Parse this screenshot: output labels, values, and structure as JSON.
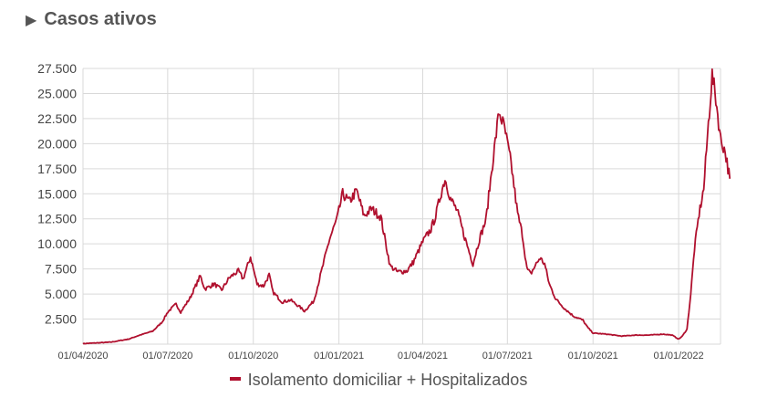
{
  "header": {
    "title": "Casos ativos",
    "expand_icon": "triangle-right-icon"
  },
  "chart_data": {
    "type": "line",
    "title": "Casos ativos",
    "xlabel": "",
    "ylabel": "",
    "ylim": [
      0,
      27500
    ],
    "xlim": [
      "2020-04-01",
      "2022-02-15"
    ],
    "yticks": [
      2500,
      5000,
      7500,
      10000,
      12500,
      15000,
      17500,
      20000,
      22500,
      25000,
      27500
    ],
    "ytick_labels": [
      "2.500",
      "5.000",
      "7.500",
      "10.000",
      "12.500",
      "15.000",
      "17.500",
      "20.000",
      "22.500",
      "25.000",
      "27.500"
    ],
    "xticks": [
      "2020-04-01",
      "2020-07-01",
      "2020-10-01",
      "2021-01-01",
      "2021-04-01",
      "2021-07-01",
      "2021-10-01",
      "2022-01-01"
    ],
    "xtick_labels": [
      "01/04/2020",
      "01/07/2020",
      "01/10/2020",
      "01/01/2021",
      "01/04/2021",
      "01/07/2021",
      "01/10/2021",
      "01/01/2022"
    ],
    "grid": true,
    "legend_position": "bottom",
    "series": [
      {
        "name": "Isolamento domiciliar + Hospitalizados",
        "color": "#b0102e",
        "points": [
          [
            "2020-04-01",
            50
          ],
          [
            "2020-05-01",
            200
          ],
          [
            "2020-05-20",
            500
          ],
          [
            "2020-06-01",
            900
          ],
          [
            "2020-06-15",
            1300
          ],
          [
            "2020-06-25",
            2200
          ],
          [
            "2020-07-01",
            3200
          ],
          [
            "2020-07-10",
            4000
          ],
          [
            "2020-07-15",
            3200
          ],
          [
            "2020-07-25",
            4600
          ],
          [
            "2020-08-05",
            6800
          ],
          [
            "2020-08-10",
            5500
          ],
          [
            "2020-08-20",
            6000
          ],
          [
            "2020-08-28",
            5400
          ],
          [
            "2020-09-05",
            6600
          ],
          [
            "2020-09-15",
            7300
          ],
          [
            "2020-09-20",
            6500
          ],
          [
            "2020-09-28",
            8700
          ],
          [
            "2020-10-05",
            6000
          ],
          [
            "2020-10-12",
            5800
          ],
          [
            "2020-10-18",
            6900
          ],
          [
            "2020-10-22",
            5200
          ],
          [
            "2020-11-01",
            4200
          ],
          [
            "2020-11-10",
            4400
          ],
          [
            "2020-11-20",
            3700
          ],
          [
            "2020-11-25",
            3300
          ],
          [
            "2020-12-05",
            4300
          ],
          [
            "2020-12-15",
            7900
          ],
          [
            "2020-12-22",
            10500
          ],
          [
            "2020-12-30",
            12500
          ],
          [
            "2021-01-05",
            15000
          ],
          [
            "2021-01-12",
            14200
          ],
          [
            "2021-01-20",
            15300
          ],
          [
            "2021-01-28",
            12800
          ],
          [
            "2021-02-05",
            13500
          ],
          [
            "2021-02-15",
            12700
          ],
          [
            "2021-02-20",
            10200
          ],
          [
            "2021-02-25",
            7800
          ],
          [
            "2021-03-05",
            7200
          ],
          [
            "2021-03-15",
            7300
          ],
          [
            "2021-03-22",
            8200
          ],
          [
            "2021-04-01",
            10200
          ],
          [
            "2021-04-10",
            11500
          ],
          [
            "2021-04-15",
            12800
          ],
          [
            "2021-04-20",
            14800
          ],
          [
            "2021-04-25",
            16500
          ],
          [
            "2021-05-01",
            14500
          ],
          [
            "2021-05-08",
            13300
          ],
          [
            "2021-05-15",
            11000
          ],
          [
            "2021-05-20",
            9500
          ],
          [
            "2021-05-25",
            8000
          ],
          [
            "2021-06-01",
            10500
          ],
          [
            "2021-06-08",
            12400
          ],
          [
            "2021-06-15",
            18000
          ],
          [
            "2021-06-22",
            23200
          ],
          [
            "2021-06-28",
            21500
          ],
          [
            "2021-07-05",
            18000
          ],
          [
            "2021-07-12",
            13000
          ],
          [
            "2021-07-17",
            11000
          ],
          [
            "2021-07-22",
            7500
          ],
          [
            "2021-07-26",
            7000
          ],
          [
            "2021-08-01",
            8000
          ],
          [
            "2021-08-05",
            8600
          ],
          [
            "2021-08-10",
            8000
          ],
          [
            "2021-08-15",
            6000
          ],
          [
            "2021-08-22",
            4500
          ],
          [
            "2021-09-01",
            3500
          ],
          [
            "2021-09-10",
            2800
          ],
          [
            "2021-09-20",
            2400
          ],
          [
            "2021-09-25",
            1700
          ],
          [
            "2021-10-01",
            1100
          ],
          [
            "2021-10-15",
            1000
          ],
          [
            "2021-11-01",
            800
          ],
          [
            "2021-11-15",
            900
          ],
          [
            "2021-12-01",
            900
          ],
          [
            "2021-12-15",
            1000
          ],
          [
            "2021-12-25",
            900
          ],
          [
            "2022-01-01",
            500
          ],
          [
            "2022-01-05",
            800
          ],
          [
            "2022-01-10",
            1500
          ],
          [
            "2022-01-14",
            5000
          ],
          [
            "2022-01-18",
            9500
          ],
          [
            "2022-01-23",
            13000
          ],
          [
            "2022-01-28",
            15500
          ],
          [
            "2022-02-02",
            22000
          ],
          [
            "2022-02-06",
            26800
          ],
          [
            "2022-02-10",
            24500
          ],
          [
            "2022-02-15",
            20500
          ],
          [
            "2022-02-20",
            19200
          ],
          [
            "2022-02-25",
            16500
          ]
        ]
      }
    ]
  }
}
